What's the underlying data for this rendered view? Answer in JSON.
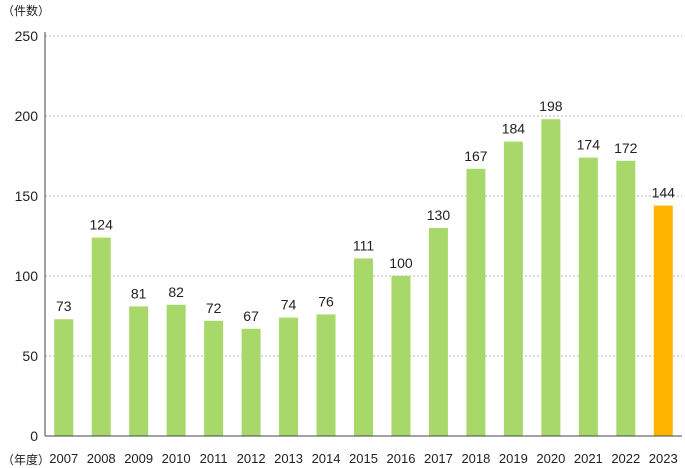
{
  "units": {
    "y": "（件数）",
    "x": "（年度）"
  },
  "colors": {
    "bar": "#a9d86a",
    "highlight": "#ffb400",
    "grid": "#b4b4b4",
    "axis": "#444444"
  },
  "chart_data": {
    "type": "bar",
    "title": "",
    "xlabel": "",
    "ylabel": "",
    "ylim": [
      0,
      250
    ],
    "yticks": [
      0,
      50,
      100,
      150,
      200,
      250
    ],
    "grid": true,
    "categories": [
      "2007",
      "2008",
      "2009",
      "2010",
      "2011",
      "2012",
      "2013",
      "2014",
      "2015",
      "2016",
      "2017",
      "2018",
      "2019",
      "2020",
      "2021",
      "2022",
      "2023"
    ],
    "values": [
      73,
      124,
      81,
      82,
      72,
      67,
      74,
      76,
      111,
      100,
      130,
      167,
      184,
      198,
      174,
      172,
      144
    ],
    "highlight_category": "2023"
  }
}
